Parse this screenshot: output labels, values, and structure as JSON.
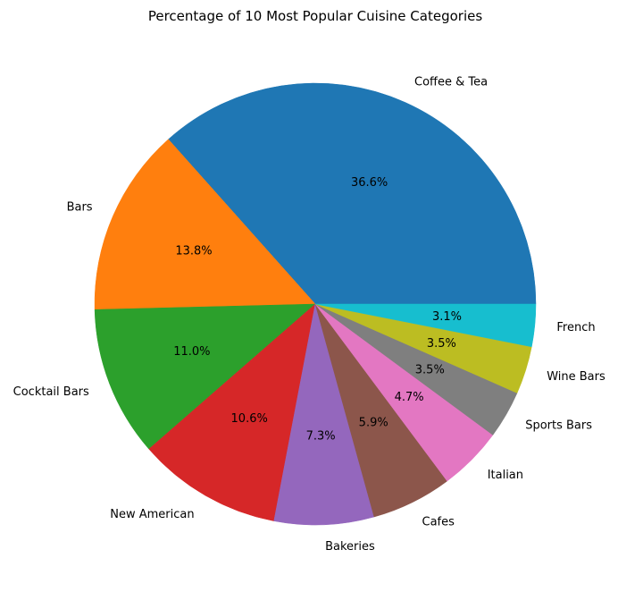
{
  "chart_data": {
    "type": "pie",
    "title": "Percentage of 10 Most Popular Cuisine Categories",
    "slices": [
      {
        "label": "Coffee & Tea",
        "value": 36.6,
        "pct_label": "36.6%",
        "color": "#1f77b4"
      },
      {
        "label": "Bars",
        "value": 13.8,
        "pct_label": "13.8%",
        "color": "#ff7f0e"
      },
      {
        "label": "Cocktail Bars",
        "value": 11.0,
        "pct_label": "11.0%",
        "color": "#2ca02c"
      },
      {
        "label": "New American",
        "value": 10.6,
        "pct_label": "10.6%",
        "color": "#d62728"
      },
      {
        "label": "Bakeries",
        "value": 7.3,
        "pct_label": "7.3%",
        "color": "#9467bd"
      },
      {
        "label": "Cafes",
        "value": 5.9,
        "pct_label": "5.9%",
        "color": "#8c564b"
      },
      {
        "label": "Italian",
        "value": 4.7,
        "pct_label": "4.7%",
        "color": "#e377c2"
      },
      {
        "label": "Sports Bars",
        "value": 3.5,
        "pct_label": "3.5%",
        "color": "#7f7f7f"
      },
      {
        "label": "Wine Bars",
        "value": 3.5,
        "pct_label": "3.5%",
        "color": "#bcbd22"
      },
      {
        "label": "French",
        "value": 3.1,
        "pct_label": "3.1%",
        "color": "#17becf"
      }
    ]
  }
}
